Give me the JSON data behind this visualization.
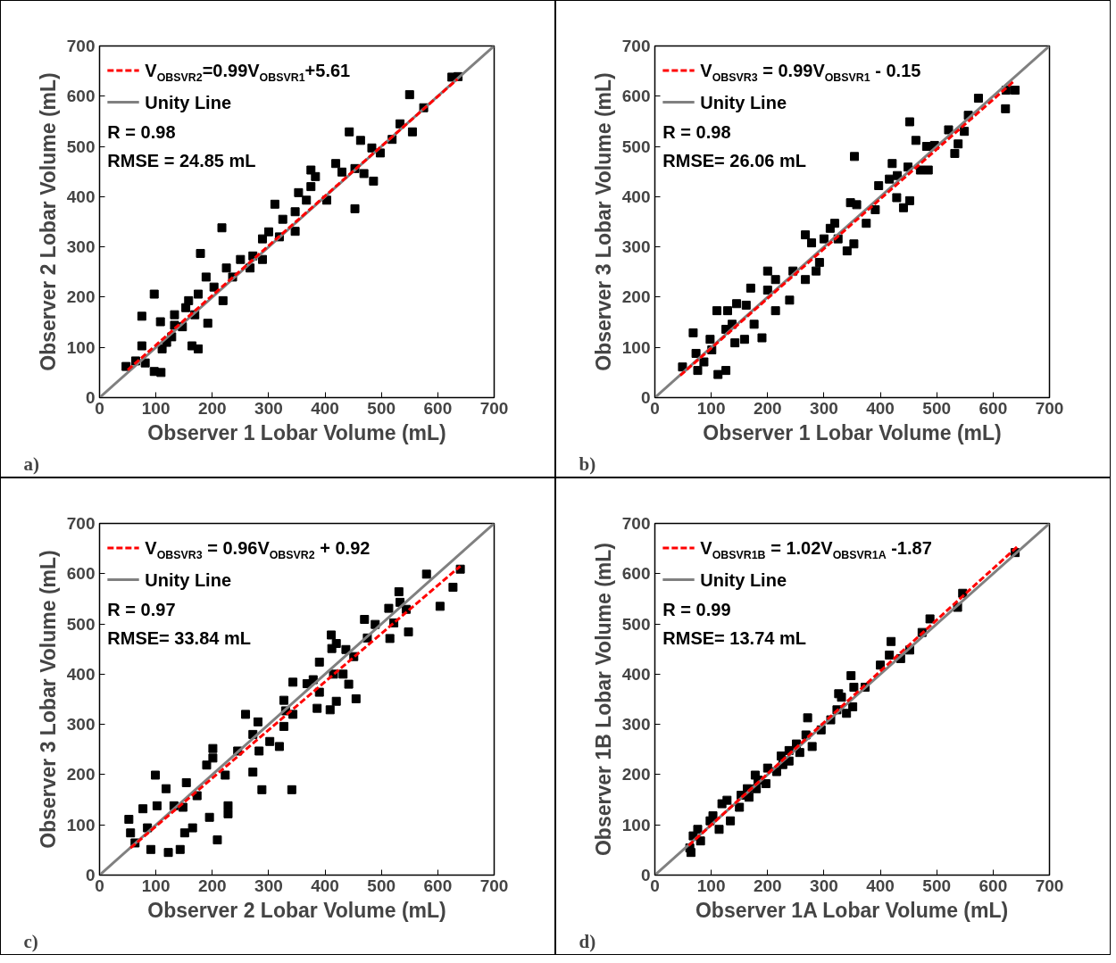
{
  "chart_data": [
    {
      "type": "scatter",
      "xlabel": "Observer 1 Lobar Volume (mL)",
      "ylabel": "Observer 2 Lobar Volume (mL)",
      "xlim": [
        0,
        700
      ],
      "ylim": [
        0,
        700
      ],
      "xticks": [
        0,
        100,
        200,
        300,
        400,
        500,
        600,
        700
      ],
      "yticks": [
        0,
        100,
        200,
        300,
        400,
        500,
        600,
        700
      ],
      "legend": "top left",
      "annotations": [
        "R = 0.98",
        "RMSE = 24.85 mL",
        "a)"
      ],
      "series": [
        {
          "marker": "square",
          "color": "#000000",
          "x": [
            625,
            636,
            550,
            575,
            533,
            555,
            519,
            443,
            463,
            483,
            498,
            453,
            469,
            486,
            453,
            419,
            430,
            383,
            375,
            375,
            403,
            353,
            367,
            311,
            325,
            347,
            347,
            300,
            319,
            289,
            289,
            272,
            250,
            267,
            225,
            217,
            179,
            189,
            175,
            203,
            219,
            158,
            153,
            133,
            133,
            108,
            97,
            75,
            175,
            164,
            192,
            128,
            111,
            75,
            97,
            109,
            64,
            47,
            81,
            236,
            119,
            147,
            169
          ],
          "values": [
            638,
            639,
            603,
            577,
            545,
            529,
            514,
            529,
            512,
            497,
            487,
            456,
            446,
            431,
            376,
            466,
            449,
            440,
            453,
            420,
            393,
            408,
            393,
            385,
            355,
            370,
            331,
            330,
            320,
            316,
            275,
            282,
            275,
            258,
            258,
            338,
            287,
            240,
            206,
            220,
            193,
            193,
            179,
            165,
            144,
            151,
            206,
            162,
            97,
            103,
            148,
            121,
            97,
            103,
            52,
            50,
            73,
            62,
            69,
            240,
            110,
            141,
            165
          ]
        },
        {
          "type": "line",
          "name": "V$_{OBSVR2}$=0.99V$_{OBSVR1}$+5.61",
          "color": "#ff0000",
          "line_style": "dashed",
          "x": [
            50,
            635
          ],
          "values": [
            55,
            634
          ]
        },
        {
          "type": "line",
          "name": "Unity Line",
          "color": "#808080",
          "line_style": "solid",
          "x": [
            0,
            700
          ],
          "values": [
            0,
            700
          ]
        }
      ]
    },
    {
      "type": "scatter",
      "xlabel": "Observer 1 Lobar Volume (mL)",
      "ylabel": "Observer 3 Lobar Volume (mL)",
      "xlim": [
        0,
        700
      ],
      "ylim": [
        0,
        700
      ],
      "xticks": [
        0,
        100,
        200,
        300,
        400,
        500,
        600,
        700
      ],
      "yticks": [
        0,
        100,
        200,
        300,
        400,
        500,
        600,
        700
      ],
      "legend": "top left",
      "annotations": [
        "R = 0.98",
        "RMSE= 26.06 mL",
        "b)"
      ],
      "series": [
        {
          "marker": "square",
          "color": "#000000",
          "x": [
            623,
            639,
            622,
            574,
            556,
            549,
            521,
            538,
            532,
            452,
            463,
            354,
            482,
            496,
            485,
            471,
            449,
            421,
            430,
            416,
            397,
            429,
            452,
            441,
            391,
            375,
            347,
            358,
            353,
            341,
            319,
            311,
            325,
            300,
            267,
            278,
            292,
            286,
            267,
            245,
            239,
            214,
            200,
            200,
            214,
            170,
            162,
            176,
            190,
            145,
            129,
            110,
            142,
            159,
            126,
            98,
            68,
            73,
            101,
            76,
            112,
            126,
            49,
            87,
            137
          ],
          "values": [
            612,
            612,
            575,
            596,
            562,
            530,
            533,
            505,
            486,
            549,
            512,
            480,
            500,
            502,
            453,
            453,
            459,
            466,
            442,
            435,
            422,
            398,
            392,
            378,
            374,
            347,
            388,
            384,
            306,
            292,
            347,
            337,
            316,
            316,
            324,
            308,
            269,
            252,
            235,
            252,
            194,
            235,
            252,
            214,
            173,
            218,
            184,
            146,
            119,
            187,
            173,
            173,
            109,
            116,
            136,
            116,
            129,
            88,
            95,
            54,
            46,
            54,
            61,
            71,
            146
          ]
        },
        {
          "type": "line",
          "name": "V$_{OBSVR3}$ = 0.99V$_{OBSVR1}$ - 0.15",
          "color": "#ff0000",
          "line_style": "dashed",
          "x": [
            45,
            637
          ],
          "values": [
            44,
            630
          ]
        },
        {
          "type": "line",
          "name": "Unity Line",
          "color": "#808080",
          "line_style": "solid",
          "x": [
            0,
            700
          ],
          "values": [
            0,
            700
          ]
        }
      ]
    },
    {
      "type": "scatter",
      "xlabel": "Observer 2 Lobar Volume (mL)",
      "ylabel": "Observer 3 Lobar Volume (mL)",
      "xlim": [
        0,
        700
      ],
      "ylim": [
        0,
        700
      ],
      "xticks": [
        0,
        100,
        200,
        300,
        400,
        500,
        600,
        700
      ],
      "yticks": [
        0,
        100,
        200,
        300,
        400,
        500,
        600,
        700
      ],
      "legend": "top left",
      "annotations": [
        "R = 0.97",
        "RMSE= 33.84 mL",
        "c)"
      ],
      "series": [
        {
          "marker": "square",
          "color": "#000000",
          "x": [
            640,
            580,
            627,
            604,
            531,
            533,
            513,
            544,
            522,
            548,
            515,
            470,
            489,
            475,
            411,
            420,
            437,
            451,
            412,
            390,
            415,
            432,
            442,
            455,
            409,
            386,
            420,
            368,
            379,
            343,
            390,
            327,
            330,
            343,
            327,
            319,
            302,
            281,
            259,
            272,
            283,
            245,
            272,
            288,
            341,
            201,
            201,
            190,
            223,
            228,
            228,
            195,
            209,
            154,
            173,
            148,
            132,
            99,
            118,
            102,
            77,
            52,
            151,
            165,
            143,
            122,
            91,
            63,
            55,
            85
          ],
          "values": [
            609,
            599,
            573,
            535,
            564,
            543,
            531,
            529,
            502,
            484,
            471,
            509,
            499,
            472,
            478,
            461,
            449,
            435,
            451,
            424,
            400,
            400,
            380,
            351,
            329,
            332,
            346,
            381,
            389,
            384,
            364,
            348,
            327,
            320,
            296,
            256,
            266,
            305,
            320,
            280,
            247,
            247,
            205,
            170,
            170,
            252,
            233,
            219,
            199,
            138,
            122,
            115,
            70,
            184,
            158,
            135,
            138,
            199,
            172,
            138,
            132,
            111,
            84,
            94,
            51,
            45,
            51,
            64,
            84,
            94
          ]
        },
        {
          "type": "line",
          "name": "V$_{OBSVR3}$ = 0.96V$_{OBSVR2}$ + 0.92",
          "color": "#ff0000",
          "line_style": "dashed",
          "x": [
            55,
            640
          ],
          "values": [
            54,
            615
          ]
        },
        {
          "type": "line",
          "name": "Unity Line",
          "color": "#808080",
          "line_style": "solid",
          "x": [
            0,
            700
          ],
          "values": [
            0,
            700
          ]
        }
      ]
    },
    {
      "type": "scatter",
      "xlabel": "Observer 1A Lobar Volume (mL)",
      "ylabel": "Observer 1B Lobar Volume (mL)",
      "xlim": [
        0,
        700
      ],
      "ylim": [
        0,
        700
      ],
      "xticks": [
        0,
        100,
        200,
        300,
        400,
        500,
        600,
        700
      ],
      "yticks": [
        0,
        100,
        200,
        300,
        400,
        500,
        600,
        700
      ],
      "legend": "top left",
      "annotations": [
        "R = 0.99",
        "RMSE= 13.74 mL",
        "d)"
      ],
      "series": [
        {
          "marker": "square",
          "color": "#000000",
          "x": [
            639,
            546,
            537,
            488,
            474,
            452,
            436,
            419,
            416,
            400,
            348,
            353,
            373,
            326,
            331,
            351,
            340,
            323,
            312,
            295,
            271,
            268,
            279,
            251,
            238,
            257,
            224,
            238,
            216,
            200,
            178,
            197,
            180,
            164,
            167,
            150,
            153,
            128,
            119,
            134,
            103,
            98,
            114,
            76,
            68,
            81,
            62,
            64,
            183,
            227
          ],
          "values": [
            642,
            561,
            533,
            510,
            483,
            448,
            431,
            465,
            438,
            418,
            397,
            374,
            374,
            361,
            354,
            335,
            322,
            329,
            309,
            289,
            313,
            279,
            256,
            261,
            248,
            244,
            237,
            227,
            206,
            213,
            199,
            182,
            172,
            172,
            155,
            135,
            159,
            149,
            142,
            108,
            118,
            108,
            91,
            91,
            78,
            68,
            54,
            45,
            189,
            220
          ]
        },
        {
          "type": "line",
          "name": "V$_{OBSVR1B}$ = 1.02V$_{OBSVR1A}$ -1.87",
          "color": "#ff0000",
          "line_style": "dashed",
          "x": [
            60,
            645
          ],
          "values": [
            59,
            656
          ]
        },
        {
          "type": "line",
          "name": "Unity Line",
          "color": "#808080",
          "line_style": "solid",
          "x": [
            0,
            700
          ],
          "values": [
            0,
            700
          ]
        }
      ]
    }
  ]
}
